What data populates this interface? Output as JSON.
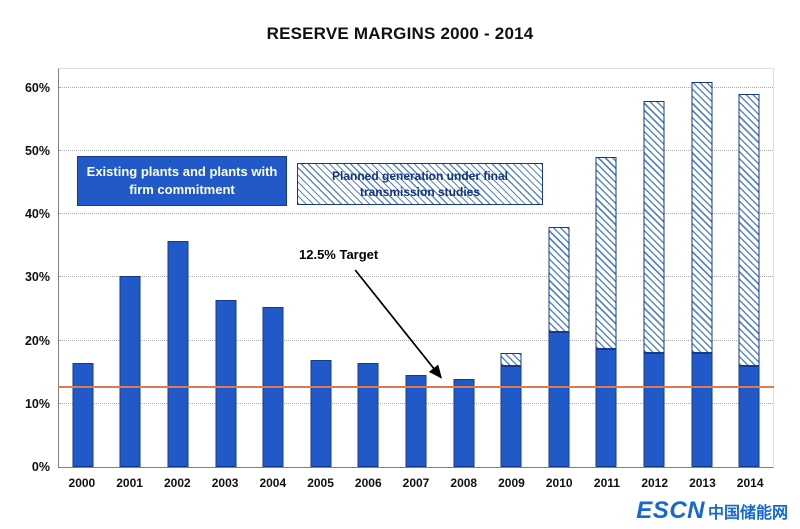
{
  "title": "RESERVE MARGINS 2000 - 2014",
  "legend": {
    "solid": "Existing plants and plants with firm commitment",
    "hatched": "Planned generation under final transmission studies"
  },
  "annotation": {
    "target": "12.5% Target"
  },
  "watermark": {
    "brand": "ESCN",
    "brand_cn": "中国储能网"
  },
  "colors": {
    "bar_solid": "#2159c9",
    "bar_border": "#163a8a",
    "hatch_line": "#5b88c4",
    "target_line": "#dd7a52",
    "watermark_blue": "#1668d6"
  },
  "chart_data": {
    "type": "bar",
    "stacked": true,
    "title": "RESERVE MARGINS 2000 - 2014",
    "xlabel": "",
    "ylabel": "",
    "ylim": [
      0,
      63
    ],
    "yticks": [
      0,
      10,
      20,
      30,
      40,
      50,
      60
    ],
    "ytick_labels": [
      "0%",
      "10%",
      "20%",
      "30%",
      "40%",
      "50%",
      "60%"
    ],
    "grid": true,
    "legend_position": "inside-top-left",
    "categories": [
      "2000",
      "2001",
      "2002",
      "2003",
      "2004",
      "2005",
      "2006",
      "2007",
      "2008",
      "2009",
      "2010",
      "2011",
      "2012",
      "2013",
      "2014"
    ],
    "series": [
      {
        "name": "Existing plants and plants with firm commitment",
        "style": "solid-blue",
        "values": [
          16.5,
          30.3,
          35.7,
          26.5,
          25.3,
          17.0,
          16.5,
          14.5,
          14.0,
          16.0,
          21.3,
          18.7,
          18.0,
          18.0,
          16.0
        ]
      },
      {
        "name": "Planned generation under final transmission studies",
        "style": "hatched",
        "values": [
          0,
          0,
          0,
          0,
          0,
          0,
          0,
          0,
          0,
          2.0,
          16.7,
          30.3,
          40.0,
          43.0,
          43.0
        ]
      }
    ],
    "stack_totals": [
      16.5,
      30.3,
      35.7,
      26.5,
      25.3,
      17.0,
      16.5,
      14.5,
      14.0,
      18.0,
      38.0,
      49.0,
      58.0,
      61.0,
      59.0
    ],
    "target_line": {
      "value": 12.5,
      "label": "12.5% Target"
    }
  }
}
